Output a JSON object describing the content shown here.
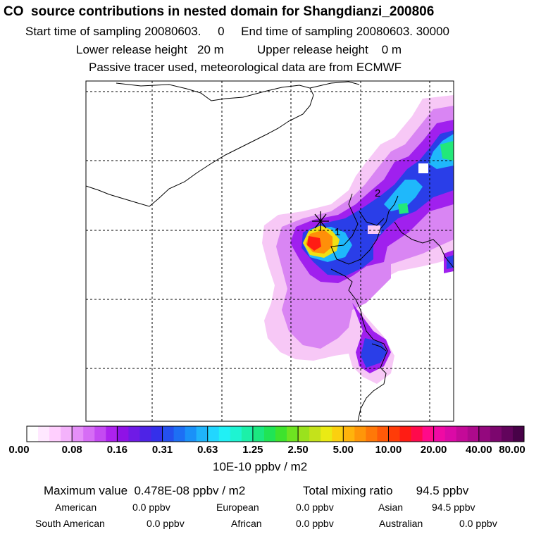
{
  "header": {
    "title": "CO  source contributions in nested domain for Shangdianzi_200806",
    "sampling": "Start time of sampling 20080603.     0     End time of sampling 20080603. 30000",
    "release": "Lower release height   20 m          Upper release height    0 m",
    "tracer": "Passive tracer used, meteorological data are from ECMWF"
  },
  "map": {
    "site_labels": [
      "1",
      "2"
    ],
    "colors": {
      "coast": "#000000",
      "grid": "#000000",
      "frame": "#000000"
    }
  },
  "colorbar": {
    "tick_labels": [
      "0.00",
      "0.08",
      "0.16",
      "0.31",
      "0.63",
      "1.25",
      "2.50",
      "5.00",
      "10.00",
      "20.00",
      "40.00",
      "80.00"
    ],
    "unit_label": "10E-10 ppbv / m2",
    "colors": [
      "#ffffff",
      "#ffe8ff",
      "#ffcffe",
      "#f4b2fb",
      "#e58ff8",
      "#d66df5",
      "#c44af2",
      "#ad22ee",
      "#8f12e6",
      "#6f1be6",
      "#4e23e6",
      "#3430ea",
      "#2450ee",
      "#1d6ff4",
      "#1a91f8",
      "#1fb4fb",
      "#22d6ff",
      "#21f0f5",
      "#1ef4d2",
      "#1cf0a8",
      "#1be880",
      "#20e455",
      "#3ee32d",
      "#6ee421",
      "#9ae21d",
      "#c4e21b",
      "#eaea14",
      "#fbd00f",
      "#ffb30c",
      "#ff9609",
      "#ff7808",
      "#ff5a08",
      "#ff3c08",
      "#ff1c14",
      "#ff0a4c",
      "#ff0a8a",
      "#f00aa4",
      "#db0aa6",
      "#c40a98",
      "#ad0a8c",
      "#94087e",
      "#7c066e",
      "#62045c",
      "#480248"
    ]
  },
  "footer": {
    "max_value": "Maximum value  0.478E-08 ppbv / m2",
    "total": "Total mixing ratio       94.5 ppbv",
    "sources": [
      {
        "name": "American",
        "value": "0.0 ppbv"
      },
      {
        "name": "European",
        "value": "0.0 ppbv"
      },
      {
        "name": "Asian",
        "value": "94.5 ppbv"
      },
      {
        "name": "South American",
        "value": "0.0 ppbv"
      },
      {
        "name": "African",
        "value": "0.0 ppbv"
      },
      {
        "name": "Australian",
        "value": "0.0 ppbv"
      }
    ]
  }
}
